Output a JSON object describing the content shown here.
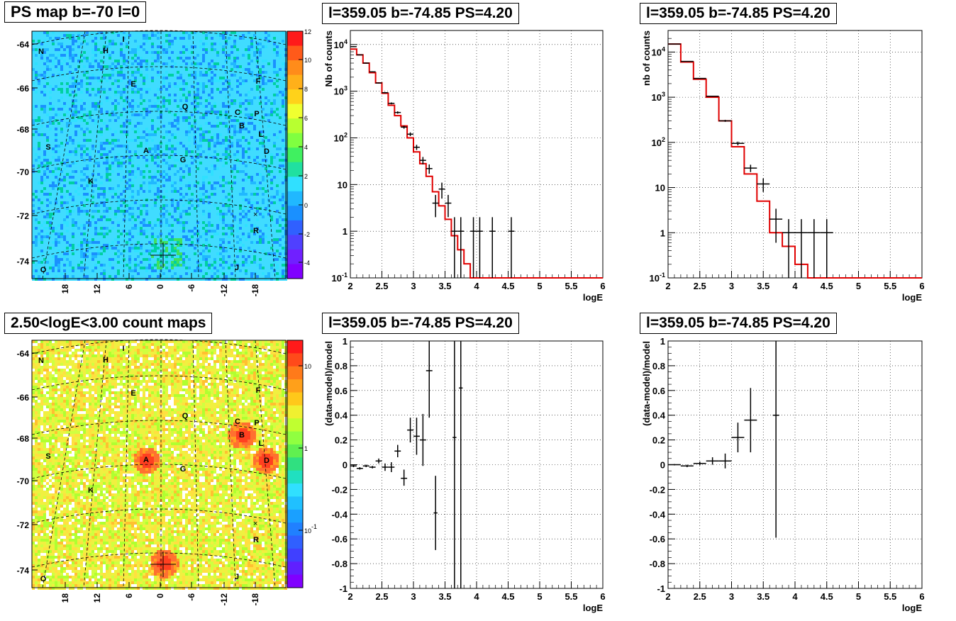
{
  "panels": {
    "map1": {
      "title": "PS map b=-70 l=0",
      "lat_ticks": [
        "-64",
        "-66",
        "-68",
        "-70",
        "-72",
        "-74"
      ],
      "lon_ticks": [
        "18",
        "12",
        "6",
        "0",
        "-6",
        "-12",
        "-18"
      ],
      "colorbar_ticks": [
        "12",
        "10",
        "8",
        "6",
        "4",
        "2",
        "0",
        "-2",
        "-4"
      ],
      "labels": [
        "N",
        "H",
        "I",
        "E",
        "F",
        "Q",
        "C",
        "P",
        "B",
        "L",
        "S",
        "A",
        "G",
        "D",
        "K",
        "R",
        "O",
        "J"
      ]
    },
    "map2": {
      "title": "2.50<logE<3.00 count maps",
      "lat_ticks": [
        "-64",
        "-66",
        "-68",
        "-70",
        "-72",
        "-74"
      ],
      "lon_ticks": [
        "18",
        "12",
        "6",
        "0",
        "-6",
        "-12",
        "-18"
      ],
      "colorbar_ticks": [
        "10",
        "1",
        "10-1"
      ],
      "labels": [
        "N",
        "H",
        "I",
        "E",
        "F",
        "Q",
        "C",
        "P",
        "B",
        "L",
        "S",
        "A",
        "G",
        "D",
        "K",
        "R",
        "O",
        "J"
      ]
    },
    "spec1_title": "l=359.05 b=-74.85 PS=4.20",
    "spec2_title": "l=359.05 b=-74.85 PS=4.20",
    "res1_title": "l=359.05 b=-74.85 PS=4.20",
    "res2_title": "l=359.05 b=-74.85 PS=4.20"
  },
  "chart_data": [
    {
      "type": "scatter",
      "title": "l=359.05 b=-74.85 PS=4.20",
      "xlabel": "logE",
      "ylabel": "Nb of counts",
      "yscale": "log",
      "xlim": [
        2,
        6
      ],
      "ylim": [
        0.1,
        20000
      ],
      "xticks": [
        "2",
        "2.5",
        "3",
        "3.5",
        "4",
        "4.5",
        "5",
        "5.5",
        "6"
      ],
      "yticks": [
        {
          "v": 0.1,
          "t": "10-1"
        },
        {
          "v": 1,
          "t": "1"
        },
        {
          "v": 10,
          "t": "10"
        },
        {
          "v": 100,
          "t": "102"
        },
        {
          "v": 1000,
          "t": "103"
        },
        {
          "v": 10000,
          "t": "104"
        }
      ],
      "grid": true,
      "model_step": {
        "edges": [
          2.0,
          2.1,
          2.2,
          2.3,
          2.4,
          2.5,
          2.6,
          2.7,
          2.8,
          2.9,
          3.0,
          3.1,
          3.2,
          3.3,
          3.4,
          3.5,
          3.6,
          3.7,
          3.8,
          3.9,
          4.0,
          6.0
        ],
        "values": [
          8000,
          6000,
          4000,
          2500,
          1500,
          900,
          500,
          300,
          180,
          100,
          50,
          28,
          15,
          7,
          3.5,
          1.8,
          0.8,
          0.4,
          0.2,
          0.1,
          0.1
        ]
      },
      "points": [
        {
          "x": 2.05,
          "y": 9000,
          "dx": 0.05,
          "lo": 8800,
          "hi": 9200
        },
        {
          "x": 2.15,
          "y": 6000,
          "dx": 0.05,
          "lo": 5900,
          "hi": 6100
        },
        {
          "x": 2.25,
          "y": 4000,
          "dx": 0.05,
          "lo": 3900,
          "hi": 4100
        },
        {
          "x": 2.35,
          "y": 2600,
          "dx": 0.05,
          "lo": 2550,
          "hi": 2650
        },
        {
          "x": 2.45,
          "y": 1500,
          "dx": 0.05,
          "lo": 1460,
          "hi": 1540
        },
        {
          "x": 2.55,
          "y": 930,
          "dx": 0.05,
          "lo": 900,
          "hi": 960
        },
        {
          "x": 2.65,
          "y": 550,
          "dx": 0.05,
          "lo": 525,
          "hi": 575
        },
        {
          "x": 2.75,
          "y": 350,
          "dx": 0.05,
          "lo": 330,
          "hi": 370
        },
        {
          "x": 2.85,
          "y": 170,
          "dx": 0.05,
          "lo": 157,
          "hi": 183
        },
        {
          "x": 2.95,
          "y": 120,
          "dx": 0.05,
          "lo": 109,
          "hi": 131
        },
        {
          "x": 3.05,
          "y": 63,
          "dx": 0.05,
          "lo": 55,
          "hi": 71
        },
        {
          "x": 3.15,
          "y": 33,
          "dx": 0.05,
          "lo": 27,
          "hi": 39
        },
        {
          "x": 3.25,
          "y": 22,
          "dx": 0.05,
          "lo": 17,
          "hi": 27
        },
        {
          "x": 3.35,
          "y": 4,
          "dx": 0.05,
          "lo": 2,
          "hi": 6
        },
        {
          "x": 3.45,
          "y": 8,
          "dx": 0.05,
          "lo": 5,
          "hi": 11
        },
        {
          "x": 3.55,
          "y": 4,
          "dx": 0.05,
          "lo": 2,
          "hi": 6
        },
        {
          "x": 3.65,
          "y": 1,
          "dx": 0.05,
          "lo": 0.1,
          "hi": 2
        },
        {
          "x": 3.75,
          "y": 1,
          "dx": 0.05,
          "lo": 0.1,
          "hi": 2
        },
        {
          "x": 3.95,
          "y": 1,
          "dx": 0.05,
          "lo": 0.1,
          "hi": 2
        },
        {
          "x": 4.05,
          "y": 1,
          "dx": 0.05,
          "lo": 0.1,
          "hi": 2
        },
        {
          "x": 4.25,
          "y": 1,
          "dx": 0.05,
          "lo": 0.1,
          "hi": 2
        },
        {
          "x": 4.55,
          "y": 1,
          "dx": 0.05,
          "lo": 0.1,
          "hi": 2
        }
      ]
    },
    {
      "type": "scatter",
      "title": "l=359.05 b=-74.85 PS=4.20",
      "xlabel": "logE",
      "ylabel": "nb of counts",
      "yscale": "log",
      "xlim": [
        2,
        6
      ],
      "ylim": [
        0.1,
        30000
      ],
      "xticks": [
        "2",
        "2.5",
        "3",
        "3.5",
        "4",
        "4.5",
        "5",
        "5.5",
        "6"
      ],
      "yticks": [
        {
          "v": 0.1,
          "t": "10-1"
        },
        {
          "v": 1,
          "t": "1"
        },
        {
          "v": 10,
          "t": "10"
        },
        {
          "v": 100,
          "t": "102"
        },
        {
          "v": 1000,
          "t": "103"
        },
        {
          "v": 10000,
          "t": "104"
        }
      ],
      "grid": true,
      "model_step": {
        "edges": [
          2.0,
          2.2,
          2.4,
          2.6,
          2.8,
          3.0,
          3.2,
          3.4,
          3.6,
          3.8,
          4.0,
          4.2,
          6.0
        ],
        "values": [
          15000,
          6000,
          2500,
          1000,
          300,
          80,
          20,
          5,
          1,
          0.5,
          0.2,
          0.1
        ]
      },
      "points": [
        {
          "x": 2.1,
          "y": 15000,
          "dx": 0.1,
          "lo": 14800,
          "hi": 15200
        },
        {
          "x": 2.3,
          "y": 6200,
          "dx": 0.1,
          "lo": 6100,
          "hi": 6300
        },
        {
          "x": 2.5,
          "y": 2600,
          "dx": 0.1,
          "lo": 2550,
          "hi": 2650
        },
        {
          "x": 2.7,
          "y": 1050,
          "dx": 0.1,
          "lo": 1020,
          "hi": 1080
        },
        {
          "x": 2.9,
          "y": 300,
          "dx": 0.1,
          "lo": 285,
          "hi": 315
        },
        {
          "x": 3.1,
          "y": 95,
          "dx": 0.1,
          "lo": 86,
          "hi": 104
        },
        {
          "x": 3.3,
          "y": 27,
          "dx": 0.1,
          "lo": 22,
          "hi": 32
        },
        {
          "x": 3.5,
          "y": 12,
          "dx": 0.1,
          "lo": 8,
          "hi": 16
        },
        {
          "x": 3.7,
          "y": 2,
          "dx": 0.1,
          "lo": 0.6,
          "hi": 3.4
        },
        {
          "x": 3.9,
          "y": 1,
          "dx": 0.1,
          "lo": 0.1,
          "hi": 2
        },
        {
          "x": 4.1,
          "y": 1,
          "dx": 0.1,
          "lo": 0.1,
          "hi": 2
        },
        {
          "x": 4.3,
          "y": 1,
          "dx": 0.1,
          "lo": 0.1,
          "hi": 2
        },
        {
          "x": 4.5,
          "y": 1,
          "dx": 0.1,
          "lo": 0.1,
          "hi": 2
        }
      ]
    },
    {
      "type": "scatter",
      "title": "l=359.05 b=-74.85 PS=4.20",
      "xlabel": "logE",
      "ylabel": "(data-model)/model",
      "yscale": "linear",
      "xlim": [
        2,
        6
      ],
      "ylim": [
        -1,
        1
      ],
      "xticks": [
        "2",
        "2.5",
        "3",
        "3.5",
        "4",
        "4.5",
        "5",
        "5.5",
        "6"
      ],
      "yticks": [
        {
          "v": -1,
          "t": "-1"
        },
        {
          "v": -0.8,
          "t": "-0.8"
        },
        {
          "v": -0.6,
          "t": "-0.6"
        },
        {
          "v": -0.4,
          "t": "-0.4"
        },
        {
          "v": -0.2,
          "t": "-0.2"
        },
        {
          "v": 0,
          "t": "0"
        },
        {
          "v": 0.2,
          "t": "0.2"
        },
        {
          "v": 0.4,
          "t": "0.4"
        },
        {
          "v": 0.6,
          "t": "0.6"
        },
        {
          "v": 0.8,
          "t": "0.8"
        },
        {
          "v": 1,
          "t": "1"
        }
      ],
      "grid": true,
      "points": [
        {
          "x": 2.05,
          "y": -0.01,
          "dx": 0.05,
          "lo": -0.02,
          "hi": 0.0
        },
        {
          "x": 2.15,
          "y": -0.03,
          "dx": 0.05,
          "lo": -0.04,
          "hi": -0.02
        },
        {
          "x": 2.25,
          "y": -0.01,
          "dx": 0.05,
          "lo": -0.02,
          "hi": 0.0
        },
        {
          "x": 2.35,
          "y": -0.02,
          "dx": 0.05,
          "lo": -0.03,
          "hi": -0.01
        },
        {
          "x": 2.45,
          "y": 0.03,
          "dx": 0.05,
          "lo": 0.01,
          "hi": 0.05
        },
        {
          "x": 2.55,
          "y": -0.02,
          "dx": 0.05,
          "lo": -0.05,
          "hi": 0.01
        },
        {
          "x": 2.65,
          "y": -0.02,
          "dx": 0.05,
          "lo": -0.06,
          "hi": 0.02
        },
        {
          "x": 2.75,
          "y": 0.11,
          "dx": 0.05,
          "lo": 0.06,
          "hi": 0.16
        },
        {
          "x": 2.85,
          "y": -0.11,
          "dx": 0.05,
          "lo": -0.17,
          "hi": -0.04
        },
        {
          "x": 2.95,
          "y": 0.28,
          "dx": 0.05,
          "lo": 0.18,
          "hi": 0.38
        },
        {
          "x": 3.05,
          "y": 0.23,
          "dx": 0.05,
          "lo": 0.08,
          "hi": 0.38
        },
        {
          "x": 3.15,
          "y": 0.2,
          "dx": 0.05,
          "lo": -0.01,
          "hi": 0.41
        },
        {
          "x": 3.25,
          "y": 0.76,
          "dx": 0.05,
          "lo": 0.38,
          "hi": 1.0
        },
        {
          "x": 3.35,
          "y": -0.39,
          "dx": 0.03,
          "lo": -0.69,
          "hi": -0.09
        },
        {
          "x": 3.65,
          "y": 0.22,
          "dx": 0.03,
          "lo": -1.0,
          "hi": 1.0
        },
        {
          "x": 3.75,
          "y": 0.62,
          "dx": 0.03,
          "lo": -1.0,
          "hi": 1.0
        }
      ]
    },
    {
      "type": "scatter",
      "title": "l=359.05 b=-74.85 PS=4.20",
      "xlabel": "logE",
      "ylabel": "(data-model)/model",
      "yscale": "linear",
      "xlim": [
        2,
        6
      ],
      "ylim": [
        -1,
        1
      ],
      "xticks": [
        "2",
        "2.5",
        "3",
        "3.5",
        "4",
        "4.5",
        "5",
        "5.5",
        "6"
      ],
      "yticks": [
        {
          "v": -1,
          "t": "-1"
        },
        {
          "v": -0.8,
          "t": "-0.8"
        },
        {
          "v": -0.6,
          "t": "-0.6"
        },
        {
          "v": -0.4,
          "t": "-0.4"
        },
        {
          "v": -0.2,
          "t": "-0.2"
        },
        {
          "v": 0,
          "t": "0"
        },
        {
          "v": 0.2,
          "t": "0.2"
        },
        {
          "v": 0.4,
          "t": "0.4"
        },
        {
          "v": 0.6,
          "t": "0.6"
        },
        {
          "v": 0.8,
          "t": "0.8"
        },
        {
          "v": 1,
          "t": "1"
        }
      ],
      "grid": true,
      "points": [
        {
          "x": 2.1,
          "y": 0.0,
          "dx": 0.1,
          "lo": -0.005,
          "hi": 0.005
        },
        {
          "x": 2.3,
          "y": -0.01,
          "dx": 0.1,
          "lo": -0.02,
          "hi": 0.0
        },
        {
          "x": 2.5,
          "y": 0.01,
          "dx": 0.1,
          "lo": -0.005,
          "hi": 0.025
        },
        {
          "x": 2.7,
          "y": 0.03,
          "dx": 0.1,
          "lo": 0.0,
          "hi": 0.06
        },
        {
          "x": 2.9,
          "y": 0.03,
          "dx": 0.1,
          "lo": -0.03,
          "hi": 0.09
        },
        {
          "x": 3.1,
          "y": 0.22,
          "dx": 0.1,
          "lo": 0.1,
          "hi": 0.34
        },
        {
          "x": 3.3,
          "y": 0.36,
          "dx": 0.1,
          "lo": 0.1,
          "hi": 0.62
        },
        {
          "x": 3.7,
          "y": 0.4,
          "dx": 0.05,
          "lo": -0.59,
          "hi": 1.0
        }
      ]
    }
  ]
}
